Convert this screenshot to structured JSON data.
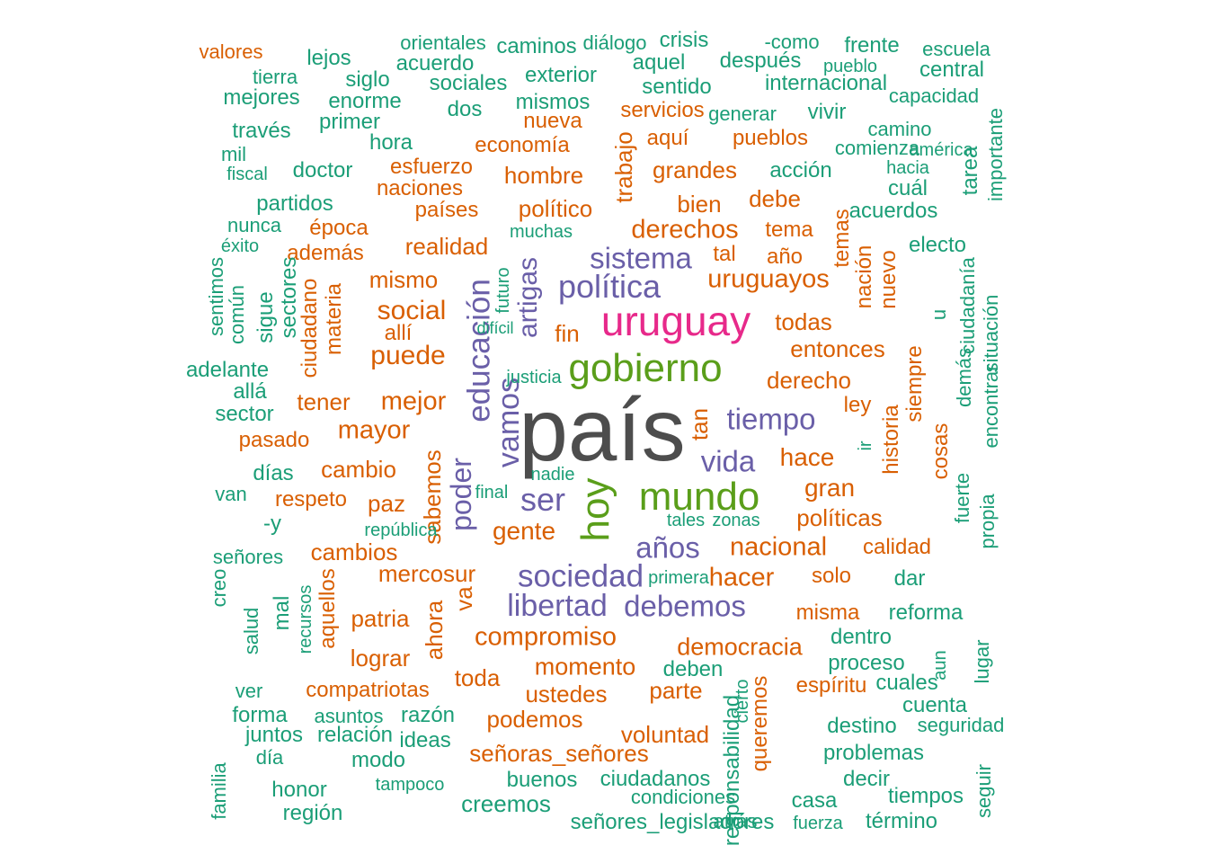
{
  "palette": {
    "grey": "#4d4d4d",
    "magenta": "#e7298a",
    "green": "#5a9e1a",
    "purple": "#6a5fa8",
    "orange": "#d95f02",
    "teal": "#1b9e77"
  },
  "words": [
    {
      "text": "país",
      "color": "grey"
    },
    {
      "text": "uruguay",
      "color": "magenta"
    },
    {
      "text": "gobierno",
      "color": "green"
    },
    {
      "text": "mundo",
      "color": "green"
    },
    {
      "text": "hoy",
      "color": "green"
    },
    {
      "text": "política",
      "color": "purple"
    },
    {
      "text": "sistema",
      "color": "purple"
    },
    {
      "text": "tiempo",
      "color": "purple"
    },
    {
      "text": "vida",
      "color": "purple"
    },
    {
      "text": "ser",
      "color": "purple"
    },
    {
      "text": "años",
      "color": "purple"
    },
    {
      "text": "sociedad",
      "color": "purple"
    },
    {
      "text": "libertad",
      "color": "purple"
    },
    {
      "text": "debemos",
      "color": "purple"
    },
    {
      "text": "vamos",
      "color": "purple"
    },
    {
      "text": "educación",
      "color": "purple"
    },
    {
      "text": "artigas",
      "color": "purple"
    },
    {
      "text": "poder",
      "color": "purple"
    },
    {
      "text": "derechos",
      "color": "orange"
    },
    {
      "text": "uruguayos",
      "color": "orange"
    },
    {
      "text": "nacional",
      "color": "orange"
    },
    {
      "text": "hacer",
      "color": "orange"
    },
    {
      "text": "compromiso",
      "color": "orange"
    },
    {
      "text": "momento",
      "color": "orange"
    },
    {
      "text": "democracia",
      "color": "orange"
    },
    {
      "text": "gente",
      "color": "orange"
    },
    {
      "text": "mejor",
      "color": "orange"
    },
    {
      "text": "puede",
      "color": "orange"
    },
    {
      "text": "social",
      "color": "orange"
    },
    {
      "text": "mayor",
      "color": "orange"
    },
    {
      "text": "hace",
      "color": "orange"
    },
    {
      "text": "gran",
      "color": "orange"
    },
    {
      "text": "políticas",
      "color": "orange"
    },
    {
      "text": "derecho",
      "color": "orange"
    },
    {
      "text": "entonces",
      "color": "orange"
    },
    {
      "text": "todas",
      "color": "orange"
    },
    {
      "text": "fin",
      "color": "orange"
    },
    {
      "text": "político",
      "color": "orange"
    },
    {
      "text": "bien",
      "color": "orange"
    },
    {
      "text": "debe",
      "color": "orange"
    },
    {
      "text": "grandes",
      "color": "orange"
    },
    {
      "text": "hombre",
      "color": "orange"
    },
    {
      "text": "realidad",
      "color": "orange"
    },
    {
      "text": "mismo",
      "color": "orange"
    },
    {
      "text": "cambio",
      "color": "orange"
    },
    {
      "text": "paz",
      "color": "orange"
    },
    {
      "text": "tener",
      "color": "orange"
    },
    {
      "text": "cambios",
      "color": "orange"
    },
    {
      "text": "mercosur",
      "color": "orange"
    },
    {
      "text": "patria",
      "color": "orange"
    },
    {
      "text": "lograr",
      "color": "orange"
    },
    {
      "text": "toda",
      "color": "orange"
    },
    {
      "text": "ustedes",
      "color": "orange"
    },
    {
      "text": "parte",
      "color": "orange"
    },
    {
      "text": "podemos",
      "color": "orange"
    },
    {
      "text": "voluntad",
      "color": "orange"
    },
    {
      "text": "señoras_señores",
      "color": "orange"
    },
    {
      "text": "compatriotas",
      "color": "orange"
    },
    {
      "text": "espíritu",
      "color": "orange"
    },
    {
      "text": "misma",
      "color": "orange"
    },
    {
      "text": "solo",
      "color": "orange"
    },
    {
      "text": "calidad",
      "color": "orange"
    },
    {
      "text": "respeto",
      "color": "orange"
    },
    {
      "text": "pasado",
      "color": "orange"
    },
    {
      "text": "allí",
      "color": "orange"
    },
    {
      "text": "economía",
      "color": "orange"
    },
    {
      "text": "esfuerzo",
      "color": "orange"
    },
    {
      "text": "naciones",
      "color": "orange"
    },
    {
      "text": "países",
      "color": "orange"
    },
    {
      "text": "época",
      "color": "orange"
    },
    {
      "text": "además",
      "color": "orange"
    },
    {
      "text": "nueva",
      "color": "orange"
    },
    {
      "text": "servicios",
      "color": "orange"
    },
    {
      "text": "aquí",
      "color": "orange"
    },
    {
      "text": "pueblos",
      "color": "orange"
    },
    {
      "text": "tema",
      "color": "orange"
    },
    {
      "text": "tal",
      "color": "orange"
    },
    {
      "text": "año",
      "color": "orange"
    },
    {
      "text": "ley",
      "color": "orange"
    },
    {
      "text": "tan",
      "color": "orange"
    },
    {
      "text": "trabajo",
      "color": "orange"
    },
    {
      "text": "sabemos",
      "color": "orange"
    },
    {
      "text": "ahora",
      "color": "orange"
    },
    {
      "text": "va",
      "color": "orange"
    },
    {
      "text": "queremos",
      "color": "orange"
    },
    {
      "text": "temas",
      "color": "orange"
    },
    {
      "text": "nación",
      "color": "orange"
    },
    {
      "text": "nuevo",
      "color": "orange"
    },
    {
      "text": "historia",
      "color": "orange"
    },
    {
      "text": "siempre",
      "color": "orange"
    },
    {
      "text": "cosas",
      "color": "orange"
    },
    {
      "text": "ciudadano",
      "color": "orange"
    },
    {
      "text": "materia",
      "color": "orange"
    },
    {
      "text": "aquellos",
      "color": "orange"
    },
    {
      "text": "valores",
      "color": "orange"
    },
    {
      "text": "lejos",
      "color": "teal"
    },
    {
      "text": "orientales",
      "color": "teal"
    },
    {
      "text": "acuerdo",
      "color": "teal"
    },
    {
      "text": "caminos",
      "color": "teal"
    },
    {
      "text": "diálogo",
      "color": "teal"
    },
    {
      "text": "crisis",
      "color": "teal"
    },
    {
      "text": "-como",
      "color": "teal"
    },
    {
      "text": "frente",
      "color": "teal"
    },
    {
      "text": "escuela",
      "color": "teal"
    },
    {
      "text": "tierra",
      "color": "teal"
    },
    {
      "text": "siglo",
      "color": "teal"
    },
    {
      "text": "exterior",
      "color": "teal"
    },
    {
      "text": "aquel",
      "color": "teal"
    },
    {
      "text": "después",
      "color": "teal"
    },
    {
      "text": "pueblo",
      "color": "teal"
    },
    {
      "text": "central",
      "color": "teal"
    },
    {
      "text": "mejores",
      "color": "teal"
    },
    {
      "text": "enorme",
      "color": "teal"
    },
    {
      "text": "sociales",
      "color": "teal"
    },
    {
      "text": "sentido",
      "color": "teal"
    },
    {
      "text": "internacional",
      "color": "teal"
    },
    {
      "text": "capacidad",
      "color": "teal"
    },
    {
      "text": "mismos",
      "color": "teal"
    },
    {
      "text": "dos",
      "color": "teal"
    },
    {
      "text": "generar",
      "color": "teal"
    },
    {
      "text": "vivir",
      "color": "teal"
    },
    {
      "text": "través",
      "color": "teal"
    },
    {
      "text": "primer",
      "color": "teal"
    },
    {
      "text": "camino",
      "color": "teal"
    },
    {
      "text": "hora",
      "color": "teal"
    },
    {
      "text": "comienza",
      "color": "teal"
    },
    {
      "text": "américa",
      "color": "teal"
    },
    {
      "text": "mil",
      "color": "teal"
    },
    {
      "text": "fiscal",
      "color": "teal"
    },
    {
      "text": "doctor",
      "color": "teal"
    },
    {
      "text": "acción",
      "color": "teal"
    },
    {
      "text": "hacia",
      "color": "teal"
    },
    {
      "text": "cuál",
      "color": "teal"
    },
    {
      "text": "partidos",
      "color": "teal"
    },
    {
      "text": "acuerdos",
      "color": "teal"
    },
    {
      "text": "nunca",
      "color": "teal"
    },
    {
      "text": "muchas",
      "color": "teal"
    },
    {
      "text": "éxito",
      "color": "teal"
    },
    {
      "text": "electo",
      "color": "teal"
    },
    {
      "text": "tarea",
      "color": "teal"
    },
    {
      "text": "importante",
      "color": "teal"
    },
    {
      "text": "sentimos",
      "color": "teal"
    },
    {
      "text": "común",
      "color": "teal"
    },
    {
      "text": "sigue",
      "color": "teal"
    },
    {
      "text": "sectores",
      "color": "teal"
    },
    {
      "text": "futuro",
      "color": "teal"
    },
    {
      "text": "difícil",
      "color": "teal"
    },
    {
      "text": "u",
      "color": "teal"
    },
    {
      "text": "ciudadanía",
      "color": "teal"
    },
    {
      "text": "demás",
      "color": "teal"
    },
    {
      "text": "situación",
      "color": "teal"
    },
    {
      "text": "encontrar",
      "color": "teal"
    },
    {
      "text": "fuerte",
      "color": "teal"
    },
    {
      "text": "propia",
      "color": "teal"
    },
    {
      "text": "adelante",
      "color": "teal"
    },
    {
      "text": "allá",
      "color": "teal"
    },
    {
      "text": "sector",
      "color": "teal"
    },
    {
      "text": "justicia",
      "color": "teal"
    },
    {
      "text": "ir",
      "color": "teal"
    },
    {
      "text": "días",
      "color": "teal"
    },
    {
      "text": "nadie",
      "color": "teal"
    },
    {
      "text": "van",
      "color": "teal"
    },
    {
      "text": "final",
      "color": "teal"
    },
    {
      "text": "-y",
      "color": "teal"
    },
    {
      "text": "república",
      "color": "teal"
    },
    {
      "text": "tales",
      "color": "teal"
    },
    {
      "text": "zonas",
      "color": "teal"
    },
    {
      "text": "creo",
      "color": "teal"
    },
    {
      "text": "señores",
      "color": "teal"
    },
    {
      "text": "mal",
      "color": "teal"
    },
    {
      "text": "recursos",
      "color": "teal"
    },
    {
      "text": "salud",
      "color": "teal"
    },
    {
      "text": "primera",
      "color": "teal"
    },
    {
      "text": "dar",
      "color": "teal"
    },
    {
      "text": "reforma",
      "color": "teal"
    },
    {
      "text": "dentro",
      "color": "teal"
    },
    {
      "text": "proceso",
      "color": "teal"
    },
    {
      "text": "deben",
      "color": "teal"
    },
    {
      "text": "cuales",
      "color": "teal"
    },
    {
      "text": "aun",
      "color": "teal"
    },
    {
      "text": "lugar",
      "color": "teal"
    },
    {
      "text": "cuenta",
      "color": "teal"
    },
    {
      "text": "cierto",
      "color": "teal"
    },
    {
      "text": "ver",
      "color": "teal"
    },
    {
      "text": "forma",
      "color": "teal"
    },
    {
      "text": "asuntos",
      "color": "teal"
    },
    {
      "text": "razón",
      "color": "teal"
    },
    {
      "text": "destino",
      "color": "teal"
    },
    {
      "text": "seguridad",
      "color": "teal"
    },
    {
      "text": "juntos",
      "color": "teal"
    },
    {
      "text": "relación",
      "color": "teal"
    },
    {
      "text": "ideas",
      "color": "teal"
    },
    {
      "text": "día",
      "color": "teal"
    },
    {
      "text": "modo",
      "color": "teal"
    },
    {
      "text": "problemas",
      "color": "teal"
    },
    {
      "text": "responsabilidad",
      "color": "teal"
    },
    {
      "text": "familia",
      "color": "teal"
    },
    {
      "text": "honor",
      "color": "teal"
    },
    {
      "text": "tampoco",
      "color": "teal"
    },
    {
      "text": "buenos",
      "color": "teal"
    },
    {
      "text": "ciudadanos",
      "color": "teal"
    },
    {
      "text": "decir",
      "color": "teal"
    },
    {
      "text": "condiciones",
      "color": "teal"
    },
    {
      "text": "casa",
      "color": "teal"
    },
    {
      "text": "tiempos",
      "color": "teal"
    },
    {
      "text": "seguir",
      "color": "teal"
    },
    {
      "text": "región",
      "color": "teal"
    },
    {
      "text": "creemos",
      "color": "teal"
    },
    {
      "text": "señores_legisladores",
      "color": "teal"
    },
    {
      "text": "atrás",
      "color": "teal"
    },
    {
      "text": "fuerza",
      "color": "teal"
    },
    {
      "text": "término",
      "color": "teal"
    },
    {
      "text": "base",
      "color": "teal"
    }
  ]
}
